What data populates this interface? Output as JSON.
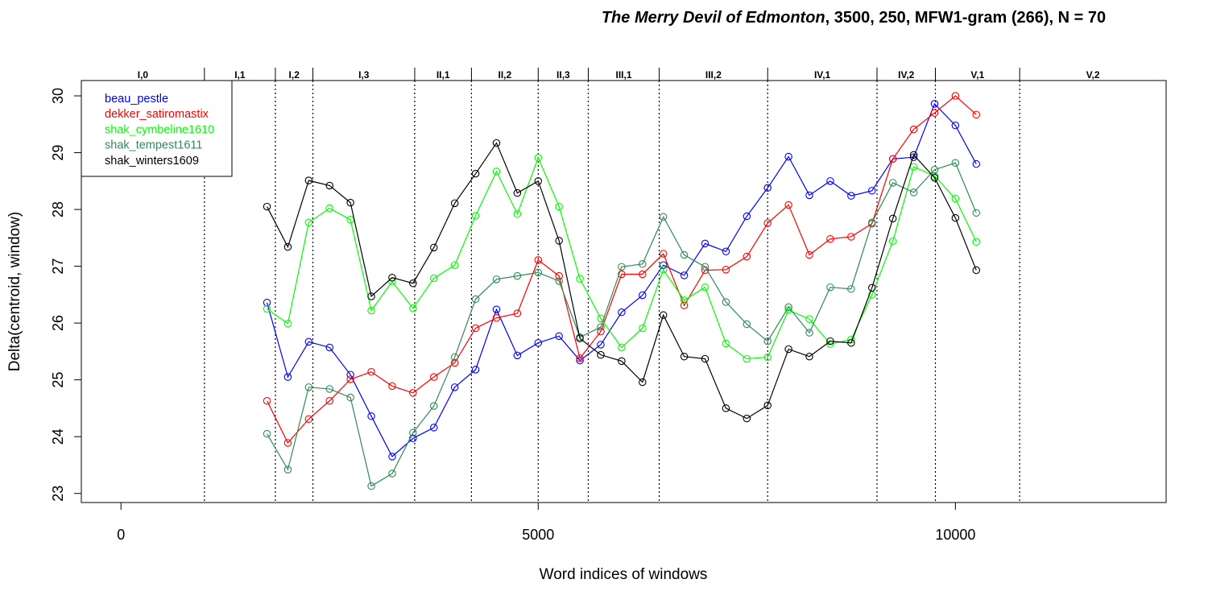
{
  "chart_data": {
    "type": "line",
    "title": {
      "italic": "The Merry Devil of Edmonton",
      "rest": ", 3500, 250, MFW1-gram (266), N = 70"
    },
    "xlabel": "Word indices of windows",
    "ylabel": "Delta(centroid, window)",
    "xlim": [
      -475,
      12525
    ],
    "ylim": [
      22.84,
      30.27
    ],
    "xticks": [
      0,
      5000,
      10000
    ],
    "yticks": [
      23,
      24,
      25,
      26,
      27,
      28,
      29,
      30
    ],
    "grid": false,
    "legend_position": "top-left",
    "x": [
      1750,
      2000,
      2250,
      2500,
      2750,
      3000,
      3250,
      3500,
      3750,
      4000,
      4250,
      4500,
      4750,
      5000,
      5250,
      5500,
      5750,
      6000,
      6250,
      6500,
      6750,
      7000,
      7250,
      7500,
      7750,
      8000,
      8250,
      8500,
      8750,
      9000,
      9250,
      9500,
      9750,
      10000,
      10250
    ],
    "series": [
      {
        "name": "beau_pestle",
        "color": "#0000ff",
        "values": [
          26.36,
          25.05,
          25.67,
          25.57,
          25.09,
          24.36,
          23.65,
          23.97,
          24.16,
          24.87,
          25.18,
          26.24,
          25.43,
          25.65,
          25.77,
          25.34,
          25.62,
          26.19,
          26.49,
          27.02,
          26.84,
          27.4,
          27.26,
          27.88,
          28.38,
          28.93,
          28.25,
          28.5,
          28.24,
          28.33,
          28.89,
          28.92,
          29.86,
          29.48,
          28.8
        ]
      },
      {
        "name": "dekker_satiromastix",
        "color": "#ff0000",
        "values": [
          24.63,
          23.89,
          24.31,
          24.63,
          25.01,
          25.14,
          24.89,
          24.77,
          25.05,
          25.3,
          25.91,
          26.09,
          26.17,
          27.11,
          26.83,
          25.38,
          25.85,
          26.86,
          26.86,
          27.22,
          26.31,
          26.93,
          26.94,
          27.17,
          27.76,
          28.08,
          27.2,
          27.48,
          27.52,
          27.75,
          28.89,
          29.41,
          29.7,
          30.0,
          29.67
        ]
      },
      {
        "name": "shak_cymbeline1610",
        "color": "#00ff00",
        "values": [
          26.25,
          25.99,
          27.77,
          28.02,
          27.82,
          26.22,
          26.73,
          26.26,
          26.79,
          27.02,
          27.89,
          28.67,
          27.92,
          28.91,
          28.05,
          26.78,
          26.08,
          25.57,
          25.91,
          26.94,
          26.4,
          26.63,
          25.64,
          25.37,
          25.4,
          26.23,
          26.07,
          25.63,
          25.71,
          26.5,
          27.44,
          28.75,
          28.59,
          28.19,
          27.43
        ]
      },
      {
        "name": "shak_tempest1611",
        "color": "#2e8b57",
        "values": [
          24.05,
          23.42,
          24.87,
          24.84,
          24.69,
          23.13,
          23.35,
          24.07,
          24.54,
          25.4,
          26.42,
          26.77,
          26.83,
          26.89,
          26.74,
          25.75,
          25.93,
          26.99,
          27.04,
          27.87,
          27.2,
          26.99,
          26.37,
          25.98,
          25.68,
          26.28,
          25.83,
          26.63,
          26.6,
          27.77,
          28.47,
          28.3,
          28.7,
          28.82,
          27.94
        ]
      },
      {
        "name": "shak_winters1609",
        "color": "#000000",
        "values": [
          28.05,
          27.34,
          28.51,
          28.42,
          28.12,
          26.47,
          26.8,
          26.7,
          27.33,
          28.11,
          28.63,
          29.17,
          28.29,
          28.5,
          27.45,
          25.73,
          25.44,
          25.33,
          24.96,
          26.14,
          25.41,
          25.37,
          24.5,
          24.32,
          24.55,
          25.54,
          25.41,
          25.68,
          25.65,
          26.62,
          27.84,
          28.96,
          28.56,
          27.85,
          26.93
        ]
      }
    ],
    "act_scenes": [
      {
        "label": "I,0",
        "end": 1000
      },
      {
        "label": "I,1",
        "end": 1850
      },
      {
        "label": "I,2",
        "end": 2300
      },
      {
        "label": "I,3",
        "end": 3520
      },
      {
        "label": "II,1",
        "end": 4200
      },
      {
        "label": "II,2",
        "end": 5000
      },
      {
        "label": "II,3",
        "end": 5600
      },
      {
        "label": "III,1",
        "end": 6450
      },
      {
        "label": "III,2",
        "end": 7750
      },
      {
        "label": "IV,1",
        "end": 9060
      },
      {
        "label": "IV,2",
        "end": 9760
      },
      {
        "label": "V,1",
        "end": 10770
      },
      {
        "label": "V,2",
        "end": null
      }
    ]
  }
}
